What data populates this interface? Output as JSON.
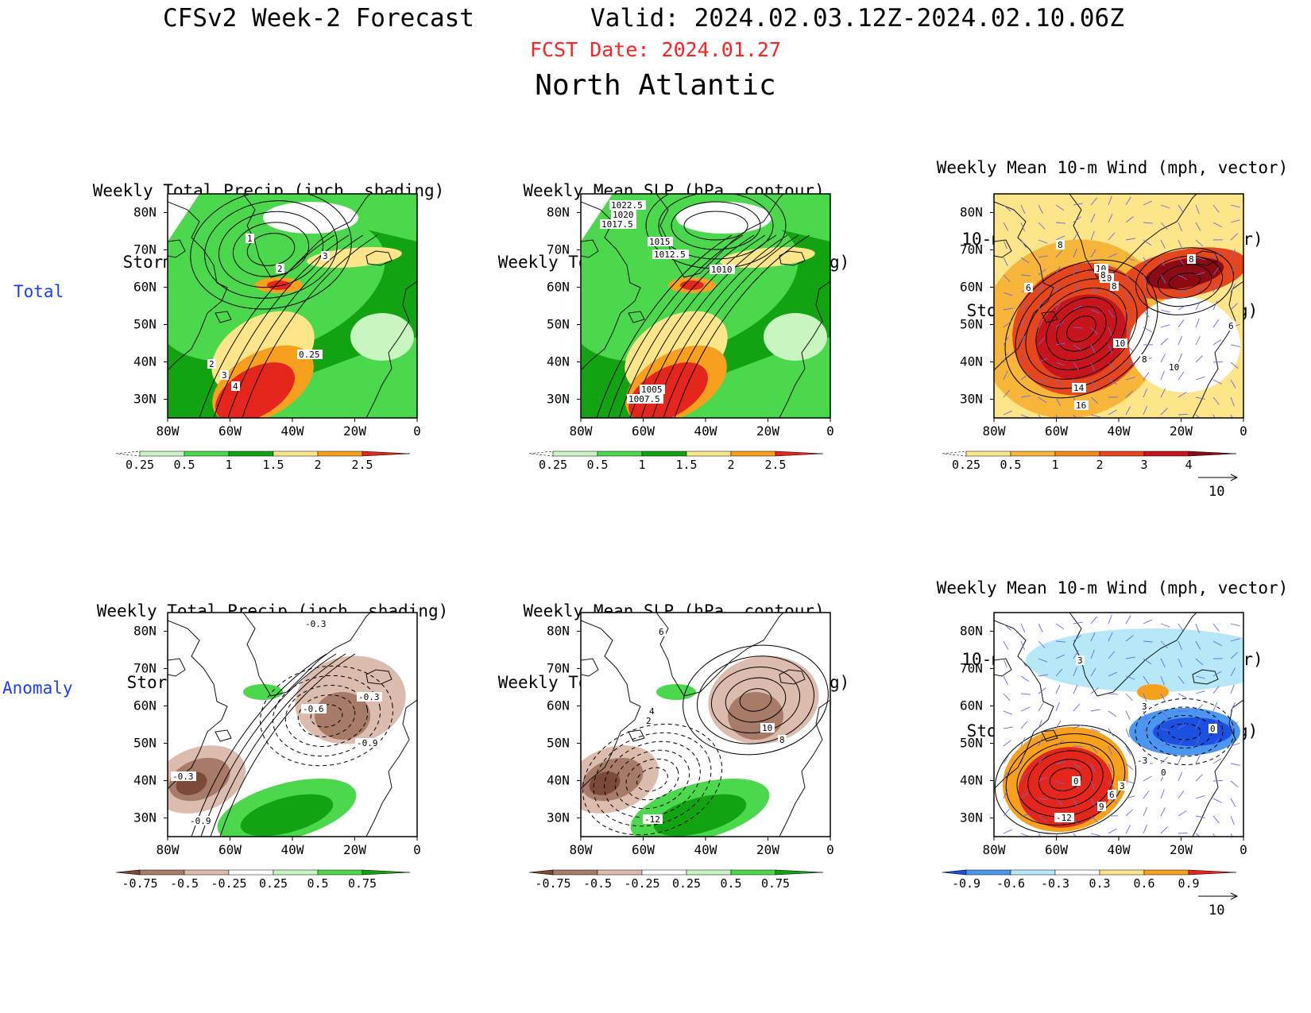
{
  "header": {
    "title_left": "CFSv2 Week-2 Forecast",
    "title_right": "Valid: 2024.02.03.12Z-2024.02.10.06Z",
    "fcst_date": "FCST Date: 2024.01.27",
    "region": "North Atlantic"
  },
  "row_labels": {
    "total": "Total",
    "anomaly": "Anomaly"
  },
  "panels": {
    "p11": {
      "line1": "Weekly Total Precip (inch, shading)",
      "line2": "Storm Track Density (contour)",
      "line3": ""
    },
    "p12": {
      "line1": "Weekly Mean SLP (hPa, contour)",
      "line2": "Weekly Total Precip (inch, shading)",
      "line3": ""
    },
    "p13": {
      "line1": "Weekly Mean 10-m Wind (mph, vector)",
      "line2": "10-m Wind Speed (mph, contour)",
      "line3": "Storm Track Density (shading)"
    },
    "p21": {
      "line1": "Weekly Total Precip (inch, shading)",
      "line2": "Storm Track Density (contour)",
      "line3": ""
    },
    "p22": {
      "line1": "Weekly Mean SLP (hPa, contour)",
      "line2": "Weekly Total Precip (inch, shading)",
      "line3": ""
    },
    "p23": {
      "line1": "Weekly Mean 10-m Wind (mph, vector)",
      "line2": "10-m Wind Speed (mph, contour)",
      "line3": "Storm Track Density (shading)"
    }
  },
  "axes": {
    "lat_ticks": [
      "80N",
      "70N",
      "60N",
      "50N",
      "40N",
      "30N"
    ],
    "lon_ticks": [
      "80W",
      "60W",
      "40W",
      "20W",
      "0"
    ]
  },
  "colorbars": {
    "precip_total": {
      "labels": [
        "0.25",
        "0.5",
        "1",
        "1.5",
        "2",
        "2.5"
      ],
      "colors": [
        "#ffffff",
        "#c8f5c0",
        "#4cd84c",
        "#11a311",
        "#fde68a",
        "#f7a01e",
        "#e4261c"
      ]
    },
    "density_total": {
      "labels": [
        "0.25",
        "0.5",
        "1",
        "2",
        "3",
        "4"
      ],
      "colors": [
        "#ffffff",
        "#fde68a",
        "#f7b63a",
        "#f28a1a",
        "#e6461c",
        "#c8141c",
        "#8c0a14"
      ]
    },
    "precip_anom": {
      "labels": [
        "-0.75",
        "-0.5",
        "-0.25",
        "0.25",
        "0.5",
        "0.75"
      ],
      "colors": [
        "#7b4a3a",
        "#a87a68",
        "#dcbcae",
        "#ffffff",
        "#c8f5c0",
        "#4cd84c",
        "#11a311"
      ]
    },
    "density_anom": {
      "labels": [
        "-0.9",
        "-0.6",
        "-0.3",
        "0.3",
        "0.6",
        "0.9"
      ],
      "colors": [
        "#1c50e0",
        "#4a96f0",
        "#b6e8f8",
        "#ffffff",
        "#fde68a",
        "#f7a01e",
        "#e4261c"
      ]
    }
  },
  "vector_ref": "10",
  "contour_labels": {
    "p11": [
      "1",
      "2",
      "3",
      "2",
      "3",
      "4",
      "0.25"
    ],
    "p12": [
      "1022.5",
      "1020",
      "1017.5",
      "1015",
      "1012.5",
      "1010",
      "1005",
      "1007.5"
    ],
    "p13": [
      "8",
      "10",
      "8",
      "10",
      "6",
      "8",
      "6",
      "10",
      "8",
      "10",
      "14",
      "16",
      "8"
    ],
    "p21": [
      "-0.3",
      "-0.3",
      "-0.6",
      "-0.9",
      "-0.3",
      "-0.9"
    ],
    "p22": [
      "6",
      "4",
      "2",
      "10",
      "8",
      "-12"
    ],
    "p23": [
      "3",
      "3",
      "0",
      "-3",
      "0",
      "3",
      "6",
      "9",
      "-12",
      "0"
    ]
  }
}
